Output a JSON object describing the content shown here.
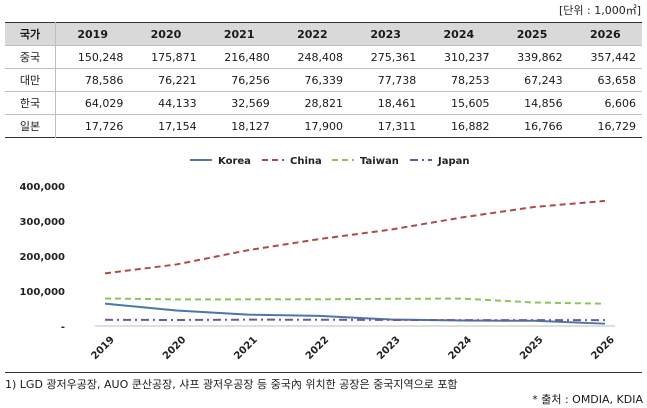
{
  "unit_label": "[단위 : 1,000㎡]",
  "table": {
    "corner": "국가",
    "years": [
      "2019",
      "2020",
      "2021",
      "2022",
      "2023",
      "2024",
      "2025",
      "2026"
    ],
    "rows": [
      {
        "label": "중국",
        "values": [
          "150,248",
          "175,871",
          "216,480",
          "248,408",
          "275,361",
          "310,237",
          "339,862",
          "357,442"
        ]
      },
      {
        "label": "대만",
        "values": [
          "78,586",
          "76,221",
          "76,256",
          "76,339",
          "77,738",
          "78,253",
          "67,243",
          "63,658"
        ]
      },
      {
        "label": "한국",
        "values": [
          "64,029",
          "44,133",
          "32,569",
          "28,821",
          "18,461",
          "15,605",
          "14,856",
          "6,606"
        ]
      },
      {
        "label": "일본",
        "values": [
          "17,726",
          "17,154",
          "18,127",
          "17,900",
          "17,311",
          "16,882",
          "16,766",
          "16,729"
        ]
      }
    ]
  },
  "chart_data": {
    "type": "line",
    "x": [
      "2019",
      "2020",
      "2021",
      "2022",
      "2023",
      "2024",
      "2025",
      "2026"
    ],
    "series": [
      {
        "name": "Korea",
        "color": "#4a78a8",
        "dash": "solid",
        "values": [
          64029,
          44133,
          32569,
          28821,
          18461,
          15605,
          14856,
          6606
        ]
      },
      {
        "name": "China",
        "color": "#b04a4a",
        "dash": "dashed",
        "values": [
          150248,
          175871,
          216480,
          248408,
          275361,
          310237,
          339862,
          357442
        ]
      },
      {
        "name": "Taiwan",
        "color": "#8fc45a",
        "dash": "dashed",
        "values": [
          78586,
          76221,
          76256,
          76339,
          77738,
          78253,
          67243,
          63658
        ]
      },
      {
        "name": "Japan",
        "color": "#6a5a9a",
        "dash": "dashdot",
        "values": [
          17726,
          17154,
          18127,
          17900,
          17311,
          16882,
          16766,
          16729
        ]
      }
    ],
    "ylim": [
      0,
      400000
    ],
    "yticks": [
      "-",
      "100,000",
      "200,000",
      "300,000",
      "400,000"
    ],
    "ytick_values": [
      0,
      100000,
      200000,
      300000,
      400000
    ],
    "legend": "top-center",
    "grid": false
  },
  "footnote": "1) LGD 광저우공장, AUO 쿤산공장, 샤프 광저우공장 등 중국內 위치한 공장은 중국지역으로 포함",
  "source": "* 출처 : OMDIA, KDIA"
}
